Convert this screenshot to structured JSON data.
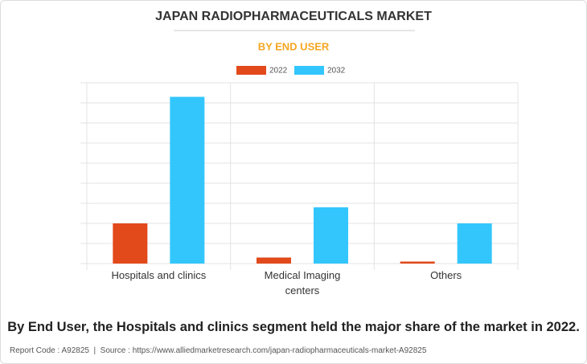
{
  "chart_data": {
    "type": "bar",
    "title": "JAPAN RADIOPHARMACEUTICALS MARKET",
    "subtitle": "BY END USER",
    "categories": [
      "Hospitals and clinics",
      "Medical Imaging centers",
      "Others"
    ],
    "series": [
      {
        "name": "2022",
        "color": "#e2491b",
        "values": [
          2.0,
          0.3,
          0.1
        ]
      },
      {
        "name": "2032",
        "color": "#33c6fd",
        "values": [
          8.3,
          2.8,
          2.0
        ]
      }
    ],
    "ylim": [
      0,
      9
    ],
    "yticks": [
      0,
      1,
      2,
      3,
      4,
      5,
      6,
      7,
      8,
      9
    ],
    "grid": true,
    "legend": "top"
  },
  "caption": "By End User, the Hospitals and clinics segment held the major share of the market in 2022.",
  "footer": "Report Code : A92825  |  Source : https://www.alliedmarketresearch.com/japan-radiopharmaceuticals-market-A92825"
}
